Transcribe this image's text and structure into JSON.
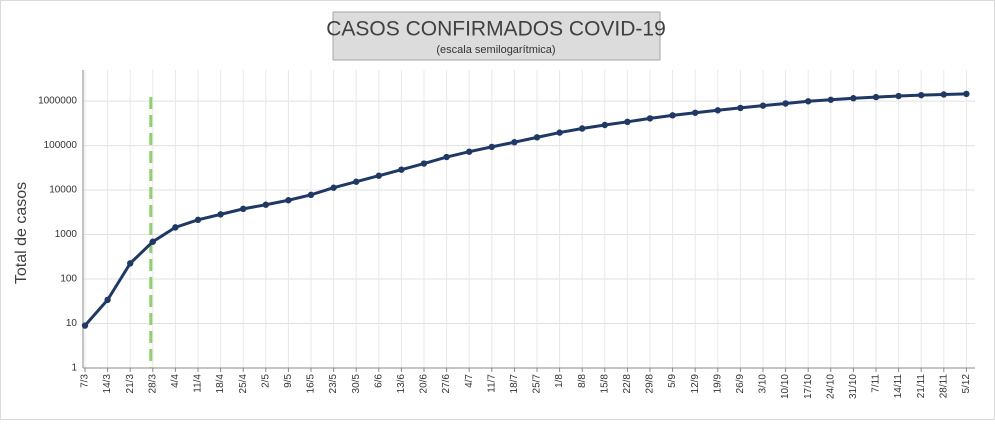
{
  "chart_data": {
    "type": "line",
    "title": "CASOS CONFIRMADOS COVID-19",
    "subtitle": "(escala semilogarítmica)",
    "y_label": "Total de casos",
    "log_scale": true,
    "grid": true,
    "categories": [
      "7/3",
      "14/3",
      "21/3",
      "28/3",
      "4/4",
      "11/4",
      "18/4",
      "25/4",
      "2/5",
      "9/5",
      "16/5",
      "23/5",
      "30/5",
      "6/6",
      "13/6",
      "20/6",
      "27/6",
      "4/7",
      "11/7",
      "18/7",
      "25/7",
      "1/8",
      "8/8",
      "15/8",
      "22/8",
      "29/8",
      "5/9",
      "12/9",
      "19/9",
      "26/9",
      "3/10",
      "10/10",
      "17/10",
      "24/10",
      "31/10",
      "7/11",
      "14/11",
      "21/11",
      "28/11",
      "5/12"
    ],
    "series": [
      {
        "name": "Casos",
        "color": "#1f3864",
        "values": [
          9,
          34,
          225,
          690,
          1450,
          2140,
          2840,
          3780,
          4680,
          5900,
          7800,
          11300,
          15400,
          21000,
          28700,
          39500,
          55300,
          72800,
          93400,
          119000,
          153000,
          196000,
          242000,
          290000,
          342000,
          408000,
          478000,
          546000,
          622000,
          702000,
          790000,
          883000,
          990000,
          1070000,
          1160000,
          1230000,
          1300000,
          1360000,
          1410000,
          1450000
        ]
      }
    ],
    "ylim": [
      1,
      5000000
    ],
    "yticks": [
      1,
      10,
      100,
      1000,
      10000,
      100000,
      1000000
    ]
  }
}
